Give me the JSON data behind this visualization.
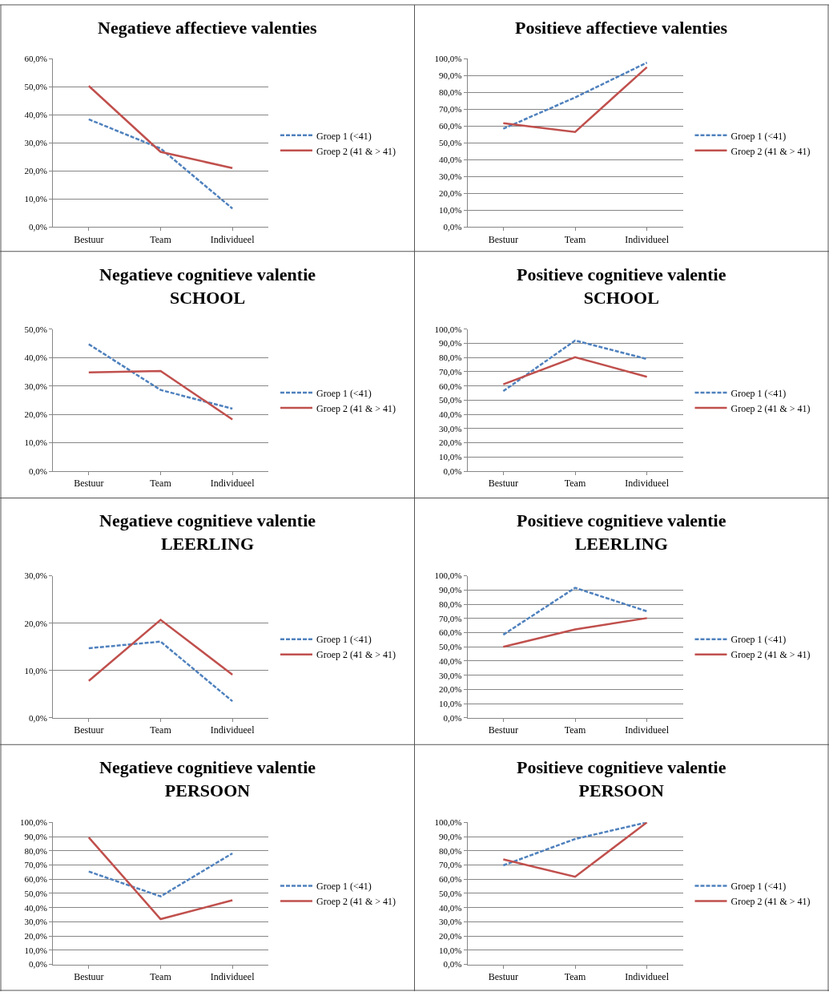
{
  "chart_data": [
    {
      "type": "line",
      "title": "Negatieve affectieve valenties",
      "categories": [
        "Bestuur",
        "Team",
        "Individueel"
      ],
      "series": [
        {
          "name": "Groep 1 (<41)",
          "color": "#4f81bd",
          "line_style": "dashed",
          "values": [
            38.4,
            28,
            6.6
          ]
        },
        {
          "name": "Groep 2 (41 & > 41)",
          "color": "#c0504d",
          "line_style": "solid",
          "values": [
            50.3,
            26.8,
            21
          ]
        }
      ],
      "ylim": [
        0,
        60
      ],
      "yticks": [
        {
          "value": 0,
          "label": "0,0%"
        },
        {
          "value": 10,
          "label": "10,0%"
        },
        {
          "value": 20,
          "label": "20,0%"
        },
        {
          "value": 30,
          "label": "30,0%"
        },
        {
          "value": 40,
          "label": "40,0%"
        },
        {
          "value": 50,
          "label": "50,0%"
        },
        {
          "value": 60,
          "label": "60,0%"
        }
      ],
      "grid": "y",
      "legend": "right"
    },
    {
      "type": "line",
      "title": "Positieve affectieve valenties",
      "categories": [
        "Bestuur",
        "Team",
        "Individueel"
      ],
      "series": [
        {
          "name": "Groep 1 (<41)",
          "color": "#4f81bd",
          "line_style": "dashed",
          "values": [
            58.4,
            77,
            97.7
          ]
        },
        {
          "name": "Groep 2 (41 & > 41)",
          "color": "#c0504d",
          "line_style": "solid",
          "values": [
            61.7,
            56.5,
            95
          ]
        }
      ],
      "ylim": [
        0,
        100
      ],
      "yticks": [
        {
          "value": 0,
          "label": "0,0%"
        },
        {
          "value": 10,
          "label": "10,0%"
        },
        {
          "value": 20,
          "label": "20,0%"
        },
        {
          "value": 30,
          "label": "30,0%"
        },
        {
          "value": 40,
          "label": "40,0%"
        },
        {
          "value": 50,
          "label": "50,0%"
        },
        {
          "value": 60,
          "label": "60,0%"
        },
        {
          "value": 70,
          "label": "70,0%"
        },
        {
          "value": 80,
          "label": "80,0%"
        },
        {
          "value": 90,
          "label": "90,0%"
        },
        {
          "value": 100,
          "label": "100,0%"
        }
      ],
      "grid": "y",
      "legend": "right"
    },
    {
      "type": "line",
      "title": "Negatieve cognitieve valentie\nSCHOOL",
      "categories": [
        "Bestuur",
        "Team",
        "Individueel"
      ],
      "series": [
        {
          "name": "Groep 1 (<41)",
          "color": "#4f81bd",
          "line_style": "dashed",
          "values": [
            44.7,
            28.6,
            22
          ]
        },
        {
          "name": "Groep 2 (41 & > 41)",
          "color": "#c0504d",
          "line_style": "solid",
          "values": [
            34.8,
            35.3,
            18.2
          ]
        }
      ],
      "ylim": [
        0,
        50
      ],
      "yticks": [
        {
          "value": 0,
          "label": "0,0%"
        },
        {
          "value": 10,
          "label": "10,0%"
        },
        {
          "value": 20,
          "label": "20,0%"
        },
        {
          "value": 30,
          "label": "30,0%"
        },
        {
          "value": 40,
          "label": "40,0%"
        },
        {
          "value": 50,
          "label": "50,0%"
        }
      ],
      "grid": "y",
      "legend": "right"
    },
    {
      "type": "line",
      "title": "Positieve cognitieve valentie\nSCHOOL",
      "categories": [
        "Bestuur",
        "Team",
        "Individueel"
      ],
      "series": [
        {
          "name": "Groep 1 (<41)",
          "color": "#4f81bd",
          "line_style": "dashed",
          "values": [
            56.4,
            92,
            79
          ]
        },
        {
          "name": "Groep 2 (41 & > 41)",
          "color": "#c0504d",
          "line_style": "solid",
          "values": [
            61.2,
            80.3,
            66.5
          ]
        }
      ],
      "ylim": [
        0,
        100
      ],
      "yticks": [
        {
          "value": 0,
          "label": "0,0%"
        },
        {
          "value": 10,
          "label": "10,0%"
        },
        {
          "value": 20,
          "label": "20,0%"
        },
        {
          "value": 30,
          "label": "30,0%"
        },
        {
          "value": 40,
          "label": "40,0%"
        },
        {
          "value": 50,
          "label": "50,0%"
        },
        {
          "value": 60,
          "label": "60,0%"
        },
        {
          "value": 70,
          "label": "70,0%"
        },
        {
          "value": 80,
          "label": "80,0%"
        },
        {
          "value": 90,
          "label": "90,0%"
        },
        {
          "value": 100,
          "label": "100,0%"
        }
      ],
      "grid": "y",
      "legend": "right"
    },
    {
      "type": "line",
      "title": "Negatieve cognitieve valentie\nLEERLING",
      "categories": [
        "Bestuur",
        "Team",
        "Individueel"
      ],
      "series": [
        {
          "name": "Groep 1 (<41)",
          "color": "#4f81bd",
          "line_style": "dashed",
          "values": [
            14.7,
            16.1,
            3.5
          ]
        },
        {
          "name": "Groep 2 (41 & > 41)",
          "color": "#c0504d",
          "line_style": "solid",
          "values": [
            7.8,
            20.7,
            9.1
          ]
        }
      ],
      "ylim": [
        0,
        30
      ],
      "yticks": [
        {
          "value": 0,
          "label": "0,0%"
        },
        {
          "value": 10,
          "label": "10,0%"
        },
        {
          "value": 20,
          "label": "20,0%"
        },
        {
          "value": 30,
          "label": "30,0%"
        }
      ],
      "grid": "y",
      "legend": "right"
    },
    {
      "type": "line",
      "title": "Positieve cognitieve valentie\nLEERLING",
      "categories": [
        "Bestuur",
        "Team",
        "Individueel"
      ],
      "series": [
        {
          "name": "Groep 1 (<41)",
          "color": "#4f81bd",
          "line_style": "dashed",
          "values": [
            58.5,
            91.5,
            75
          ]
        },
        {
          "name": "Groep 2 (41 & > 41)",
          "color": "#c0504d",
          "line_style": "solid",
          "values": [
            50,
            62.2,
            70.2
          ]
        }
      ],
      "ylim": [
        0,
        100
      ],
      "yticks": [
        {
          "value": 0,
          "label": "0,0%"
        },
        {
          "value": 10,
          "label": "10,0%"
        },
        {
          "value": 20,
          "label": "20,0%"
        },
        {
          "value": 30,
          "label": "30,0%"
        },
        {
          "value": 40,
          "label": "40,0%"
        },
        {
          "value": 50,
          "label": "50,0%"
        },
        {
          "value": 60,
          "label": "60,0%"
        },
        {
          "value": 70,
          "label": "70,0%"
        },
        {
          "value": 80,
          "label": "80,0%"
        },
        {
          "value": 90,
          "label": "90,0%"
        },
        {
          "value": 100,
          "label": "100,0%"
        }
      ],
      "grid": "y",
      "legend": "right"
    },
    {
      "type": "line",
      "title": "Negatieve cognitieve valentie\nPERSOON",
      "categories": [
        "Bestuur",
        "Team",
        "Individueel"
      ],
      "series": [
        {
          "name": "Groep 1 (<41)",
          "color": "#4f81bd",
          "line_style": "dashed",
          "values": [
            65.4,
            47.9,
            78.2
          ]
        },
        {
          "name": "Groep 2 (41 & > 41)",
          "color": "#c0504d",
          "line_style": "solid",
          "values": [
            89.4,
            31.9,
            45.2
          ]
        }
      ],
      "ylim": [
        0,
        100
      ],
      "yticks": [
        {
          "value": 0,
          "label": "0,0%"
        },
        {
          "value": 10,
          "label": "10,0%"
        },
        {
          "value": 20,
          "label": "20,0%"
        },
        {
          "value": 30,
          "label": "30,0%"
        },
        {
          "value": 40,
          "label": "40,0%"
        },
        {
          "value": 50,
          "label": "50,0%"
        },
        {
          "value": 60,
          "label": "60,0%"
        },
        {
          "value": 70,
          "label": "70,0%"
        },
        {
          "value": 80,
          "label": "80,0%"
        },
        {
          "value": 90,
          "label": "90,0%"
        },
        {
          "value": 100,
          "label": "100,0%"
        }
      ],
      "grid": "y",
      "legend": "right"
    },
    {
      "type": "line",
      "title": "Positieve cognitieve valentie\nPERSOON",
      "categories": [
        "Bestuur",
        "Team",
        "Individueel"
      ],
      "series": [
        {
          "name": "Groep 1 (<41)",
          "color": "#4f81bd",
          "line_style": "dashed",
          "values": [
            69.7,
            88.3,
            100
          ]
        },
        {
          "name": "Groep 2 (41 & > 41)",
          "color": "#c0504d",
          "line_style": "solid",
          "values": [
            73.9,
            61.7,
            100
          ]
        }
      ],
      "ylim": [
        0,
        100
      ],
      "yticks": [
        {
          "value": 0,
          "label": "0,0%"
        },
        {
          "value": 10,
          "label": "10,0%"
        },
        {
          "value": 20,
          "label": "20,0%"
        },
        {
          "value": 30,
          "label": "30,0%"
        },
        {
          "value": 40,
          "label": "40,0%"
        },
        {
          "value": 50,
          "label": "50,0%"
        },
        {
          "value": 60,
          "label": "60,0%"
        },
        {
          "value": 70,
          "label": "70,0%"
        },
        {
          "value": 80,
          "label": "80,0%"
        },
        {
          "value": 90,
          "label": "90,0%"
        },
        {
          "value": 100,
          "label": "100,0%"
        }
      ],
      "grid": "y",
      "legend": "right"
    }
  ]
}
